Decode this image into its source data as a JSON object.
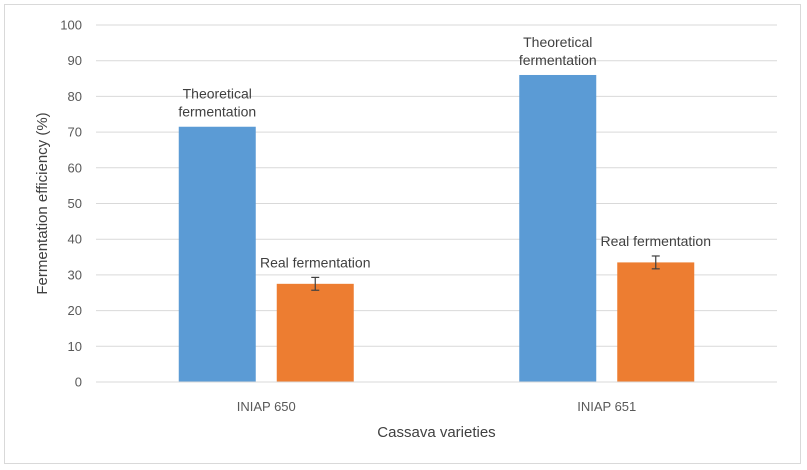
{
  "chart_data": {
    "type": "bar",
    "title": "",
    "xlabel": "Cassava varieties",
    "ylabel": "Fermentation efficiency (%)",
    "ylim": [
      0,
      100
    ],
    "yticks": [
      0,
      10,
      20,
      30,
      40,
      50,
      60,
      70,
      80,
      90,
      100
    ],
    "grid": true,
    "categories": [
      "INIAP 650",
      "INIAP 651"
    ],
    "series": [
      {
        "color": "#5b9bd5",
        "values": [
          71.5,
          86
        ],
        "labels": [
          [
            "Theoretical",
            "fermentation"
          ],
          [
            "Theoretical",
            "fermentation"
          ]
        ]
      },
      {
        "color": "#ed7d31",
        "values": [
          27.5,
          33.5
        ],
        "error": [
          1.8,
          1.8
        ],
        "labels": [
          [
            "Real fermentation"
          ],
          [
            "Real fermentation"
          ]
        ]
      }
    ]
  }
}
